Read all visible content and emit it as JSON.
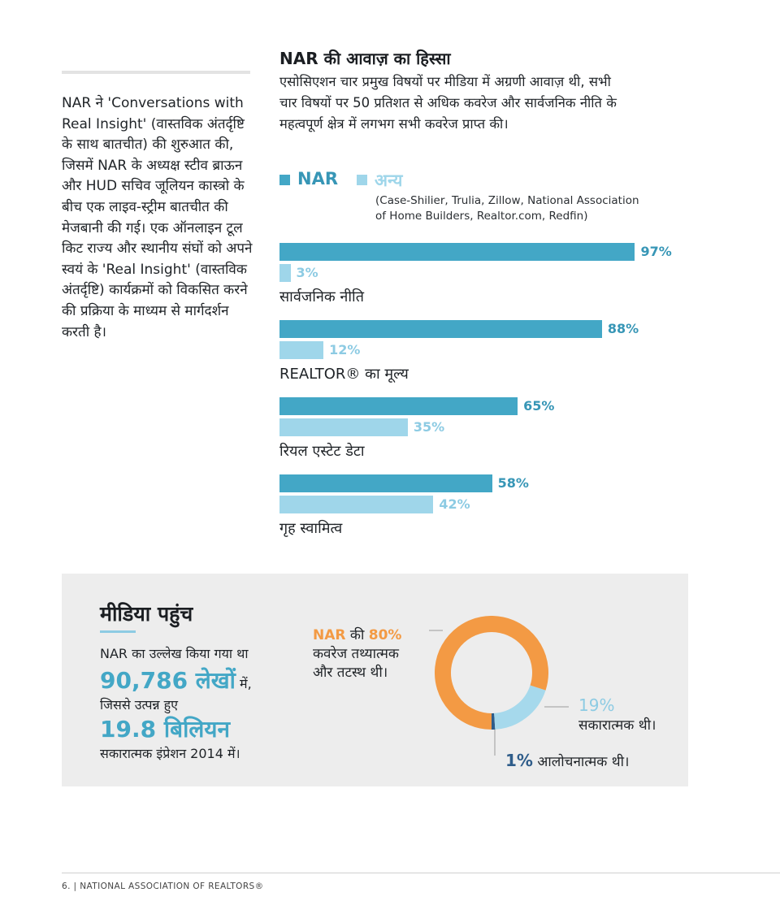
{
  "intro": {
    "text": "NAR ने 'Conversations with Real Insight' (वास्तविक अंतर्दृष्टि के साथ बातचीत) की शुरुआत की, जिसमें NAR के अध्यक्ष स्टीव ब्राऊन और HUD सचिव जूलियन कास्त्रो के बीच एक लाइव-स्ट्रीम बातचीत की मेजबानी की गई। एक ऑनलाइन टूल किट राज्य और स्थानीय संघों को अपने स्वयं के 'Real Insight' (वास्तविक अंतर्दृष्टि) कार्यक्रमों को विकसित करने की प्रक्रिया के माध्यम से मार्गदर्शन करती है।"
  },
  "share_of_voice": {
    "title": "NAR की आवाज़ का हिस्सा",
    "description": "एसोसिएशन चार प्रमुख विषयों पर मीडिया में अग्रणी आवाज़ थी, सभी चार विषयों पर 50 प्रतिशत से अधिक कवरेज और सार्वजनिक नीति के महत्वपूर्ण क्षेत्र में लगभग सभी कवरेज प्राप्त की।",
    "legend_note": "(Case-Shilier, Trulia, Zillow, National Association of Home Builders, Realtor.com, Redfin)"
  },
  "chart_data": {
    "type": "bar",
    "orientation": "horizontal",
    "categories": [
      "सार्वजनिक नीति",
      "REALTOR® का मूल्य",
      "रियल एस्टेट डेटा",
      "गृह स्वामित्व"
    ],
    "series": [
      {
        "name": "NAR",
        "values": [
          97,
          88,
          65,
          58
        ],
        "color": "#43a7c6"
      },
      {
        "name": "अन्य",
        "values": [
          3,
          12,
          35,
          42
        ],
        "color": "#9fd6ea"
      }
    ],
    "value_suffix": "%",
    "xlim": [
      0,
      100
    ]
  },
  "media_reach": {
    "title": "मीडिया पहुंच",
    "line1": "NAR का उल्लेख किया गया था",
    "articles_value": "90,786 लेखों",
    "articles_suffix": " में,",
    "line2": "जिससे उत्पन्न हुए",
    "impressions_value": "19.8 बिलियन",
    "line3": "सकारात्मक इंप्रेशन 2014 में।"
  },
  "coverage": {
    "factual_percent": 80,
    "positive_percent": 19,
    "critical_percent": 1,
    "factual_prefix": "NAR",
    "factual_mid": " की ",
    "factual_value": "80%",
    "factual_text_1": "कवरेज तथ्यात्मक",
    "factual_text_2": "और तटस्थ थी।",
    "positive_value": "19%",
    "positive_text": "सकारात्मक थी।",
    "critical_value": "1%",
    "critical_text": " आलोचनात्मक थी।",
    "colors": {
      "factual": "#f39a44",
      "positive": "#a6d9ec",
      "critical": "#2f5d8a"
    }
  },
  "footer": {
    "text": "6. | NATIONAL ASSOCIATION OF REALTORS®"
  }
}
